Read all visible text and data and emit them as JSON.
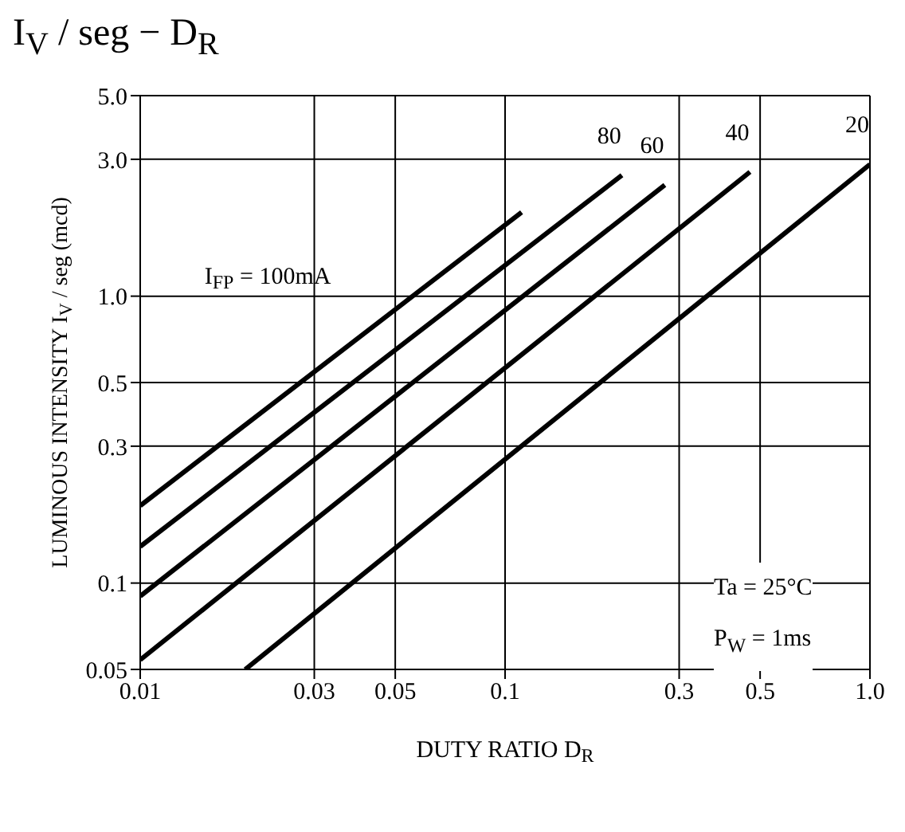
{
  "chart_data": {
    "type": "line",
    "title": "I$_{V}$ / seg  −  D$_{R}$",
    "xlabel": "DUTY RATIO   D$_{R}$",
    "ylabel": "LUMINOUS INTENSITY   I$_{V}$ / seg   (mcd)",
    "log": "xy",
    "grid": true,
    "marker": "none",
    "line_style": "solid",
    "xlim": [
      0.01,
      1.0
    ],
    "xticks": [
      0.01,
      0.03,
      0.05,
      0.1,
      0.3,
      0.5,
      {
        "value": 1.0,
        "label": "1.0"
      }
    ],
    "ylim": [
      0.05,
      5.0
    ],
    "yticks": [
      0.05,
      0.1,
      0.3,
      0.5,
      {
        "value": 1.0,
        "label": "1.0"
      },
      {
        "value": 3.0,
        "label": "3.0"
      },
      {
        "value": 5.0,
        "label": "5.0"
      }
    ],
    "series": [
      {
        "name": "I$_{FP}$ = 100mA",
        "color": "#000000",
        "x": [
          0.01,
          0.111
        ],
        "values": [
          0.186,
          1.96
        ]
      },
      {
        "name": "80",
        "color": "#000000",
        "x": [
          0.01,
          0.209
        ],
        "values": [
          0.134,
          2.64
        ]
      },
      {
        "name": "60",
        "color": "#000000",
        "x": [
          0.01,
          0.274
        ],
        "values": [
          0.09,
          2.44
        ]
      },
      {
        "name": "40",
        "color": "#000000",
        "x": [
          0.01,
          0.469
        ],
        "values": [
          0.054,
          2.71
        ]
      },
      {
        "name": "20",
        "color": "#000000",
        "x": [
          0.0194,
          1.0
        ],
        "values": [
          0.05,
          2.88
        ]
      }
    ],
    "annotations": [
      "Ta = 25°C",
      "P$_{W}$ = 1ms"
    ]
  }
}
